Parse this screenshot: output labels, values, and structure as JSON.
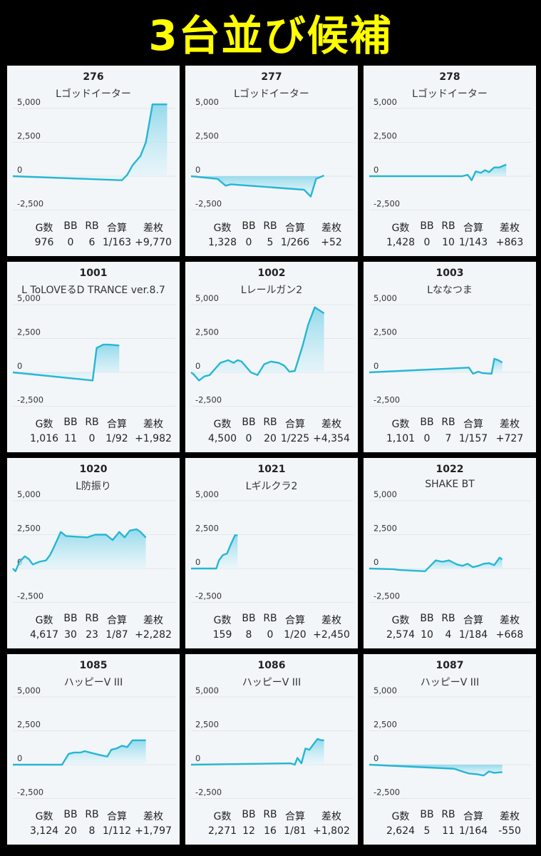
{
  "title": "3台並び候補",
  "stat_headers": [
    "G数",
    "BB",
    "RB",
    "合算",
    "差枚"
  ],
  "y_ticks": [
    "5,000",
    "2,500",
    "0",
    "-2,500"
  ],
  "colors": {
    "line": "#26b6d4",
    "fill_top": "#8fd8ea",
    "fill_bottom": "#e6f6fb",
    "title": "#ffff00"
  },
  "machines": [
    {
      "number": "276",
      "name": "Lゴッドイーター",
      "stats": [
        "976",
        "0",
        "6",
        "1/163",
        "+9,770"
      ],
      "chart_data": {
        "type": "area",
        "ylim": [
          -3500,
          6000
        ],
        "x": [
          0,
          0.82,
          0.86,
          0.9,
          0.96,
          1.0,
          1.05,
          1.12,
          1.16
        ],
        "y": [
          0,
          -300,
          100,
          800,
          1500,
          2500,
          5300,
          5300,
          5300
        ],
        "flat_from": 5
      }
    },
    {
      "number": "277",
      "name": "Lゴッドイーター",
      "stats": [
        "1,328",
        "0",
        "5",
        "1/266",
        "+52"
      ],
      "chart_data": {
        "type": "area",
        "ylim": [
          -3500,
          6000
        ],
        "x": [
          0,
          0.2,
          0.26,
          0.3,
          0.85,
          0.9,
          0.94,
          1.0
        ],
        "y": [
          0,
          -200,
          -700,
          -600,
          -1000,
          -1500,
          -200,
          52
        ]
      }
    },
    {
      "number": "278",
      "name": "Lゴッドイーター",
      "stats": [
        "1,428",
        "0",
        "10",
        "1/143",
        "+863"
      ],
      "chart_data": {
        "type": "area",
        "ylim": [
          -3500,
          6000
        ],
        "x": [
          0,
          0.7,
          0.74,
          0.77,
          0.8,
          0.84,
          0.87,
          0.9,
          0.94,
          0.98,
          1.03
        ],
        "y": [
          0,
          0,
          100,
          -300,
          350,
          250,
          450,
          300,
          650,
          650,
          863
        ]
      }
    },
    {
      "number": "1001",
      "name": "L ToLOVEるD TRANCE ver.8.7",
      "stats": [
        "1,016",
        "11",
        "0",
        "1/92",
        "+1,982"
      ],
      "chart_data": {
        "type": "area",
        "ylim": [
          -3500,
          6000
        ],
        "x": [
          0,
          0.6,
          0.63,
          0.68,
          0.72,
          0.8
        ],
        "y": [
          0,
          -600,
          1800,
          2050,
          2050,
          1982
        ]
      }
    },
    {
      "number": "1002",
      "name": "Lレールガン2",
      "stats": [
        "4,500",
        "0",
        "20",
        "1/225",
        "+4,354"
      ],
      "chart_data": {
        "type": "area",
        "ylim": [
          -3500,
          6000
        ],
        "x": [
          0,
          0.02,
          0.06,
          0.1,
          0.14,
          0.22,
          0.28,
          0.32,
          0.35,
          0.38,
          0.45,
          0.5,
          0.55,
          0.6,
          0.66,
          0.7,
          0.74,
          0.78,
          0.84,
          0.88,
          0.93,
          1.0
        ],
        "y": [
          0,
          -150,
          -600,
          -300,
          -200,
          700,
          900,
          700,
          900,
          800,
          0,
          -200,
          600,
          800,
          700,
          500,
          50,
          100,
          2000,
          3500,
          4800,
          4354
        ]
      }
    },
    {
      "number": "1003",
      "name": "Lななつま",
      "stats": [
        "1,101",
        "0",
        "7",
        "1/157",
        "+727"
      ],
      "chart_data": {
        "type": "area",
        "ylim": [
          -3500,
          6000
        ],
        "x": [
          0,
          0.75,
          0.78,
          0.82,
          0.85,
          0.92,
          0.94,
          0.97,
          1.0
        ],
        "y": [
          0,
          350,
          -100,
          50,
          -50,
          -100,
          1000,
          900,
          727
        ]
      }
    },
    {
      "number": "1020",
      "name": "L防振り",
      "stats": [
        "4,617",
        "30",
        "23",
        "1/87",
        "+2,282"
      ],
      "chart_data": {
        "type": "area",
        "ylim": [
          -3500,
          6000
        ],
        "x": [
          0,
          0.02,
          0.05,
          0.09,
          0.12,
          0.15,
          0.2,
          0.25,
          0.28,
          0.31,
          0.36,
          0.4,
          0.56,
          0.62,
          0.7,
          0.75,
          0.8,
          0.84,
          0.88,
          0.93,
          0.96,
          1.0
        ],
        "y": [
          0,
          -200,
          500,
          900,
          700,
          300,
          500,
          600,
          1000,
          1600,
          2700,
          2400,
          2300,
          2500,
          2500,
          2100,
          2700,
          2300,
          2800,
          2900,
          2700,
          2282
        ]
      }
    },
    {
      "number": "1021",
      "name": "Lギルクラ2",
      "stats": [
        "159",
        "8",
        "0",
        "1/20",
        "+2,450"
      ],
      "chart_data": {
        "type": "area",
        "ylim": [
          -3500,
          6000
        ],
        "x": [
          0,
          0.19,
          0.21,
          0.24,
          0.27,
          0.3,
          0.33,
          0.35
        ],
        "y": [
          0,
          0,
          600,
          1000,
          1100,
          1800,
          2450,
          2450
        ]
      }
    },
    {
      "number": "1022",
      "name": "SHAKE BT",
      "stats": [
        "2,574",
        "10",
        "4",
        "1/184",
        "+668"
      ],
      "chart_data": {
        "type": "area",
        "ylim": [
          -3500,
          6000
        ],
        "x": [
          0,
          0.18,
          0.22,
          0.42,
          0.46,
          0.5,
          0.55,
          0.6,
          0.66,
          0.7,
          0.74,
          0.78,
          0.82,
          0.86,
          0.9,
          0.94,
          0.98,
          1.0
        ],
        "y": [
          0,
          -50,
          -100,
          -200,
          200,
          600,
          500,
          600,
          300,
          200,
          350,
          100,
          200,
          350,
          400,
          250,
          800,
          668
        ]
      }
    },
    {
      "number": "1085",
      "name": "ハッピーV III",
      "stats": [
        "3,124",
        "20",
        "8",
        "1/112",
        "+1,797"
      ],
      "chart_data": {
        "type": "area",
        "ylim": [
          -3500,
          6000
        ],
        "x": [
          0,
          0.37,
          0.42,
          0.46,
          0.51,
          0.54,
          0.58,
          0.62,
          0.66,
          0.71,
          0.74,
          0.78,
          0.82,
          0.86,
          0.9,
          0.95,
          1.0
        ],
        "y": [
          0,
          0,
          800,
          900,
          900,
          1000,
          900,
          800,
          700,
          600,
          1100,
          1200,
          1400,
          1300,
          1800,
          1800,
          1797
        ]
      }
    },
    {
      "number": "1086",
      "name": "ハッピーV III",
      "stats": [
        "2,271",
        "12",
        "16",
        "1/81",
        "+1,802"
      ],
      "chart_data": {
        "type": "area",
        "ylim": [
          -3500,
          6000
        ],
        "x": [
          0,
          0.75,
          0.78,
          0.8,
          0.83,
          0.86,
          0.89,
          0.92,
          0.95,
          0.98,
          1.0
        ],
        "y": [
          0,
          100,
          0,
          500,
          100,
          1200,
          1100,
          1500,
          1900,
          1800,
          1802
        ]
      }
    },
    {
      "number": "1087",
      "name": "ハッピーV III",
      "stats": [
        "2,624",
        "5",
        "11",
        "1/164",
        "-550"
      ],
      "chart_data": {
        "type": "area",
        "ylim": [
          -3500,
          6000
        ],
        "x": [
          0,
          0.64,
          0.7,
          0.75,
          0.81,
          0.86,
          0.9,
          0.94,
          1.0
        ],
        "y": [
          0,
          -300,
          -500,
          -650,
          -700,
          -800,
          -500,
          -600,
          -550
        ]
      }
    }
  ]
}
